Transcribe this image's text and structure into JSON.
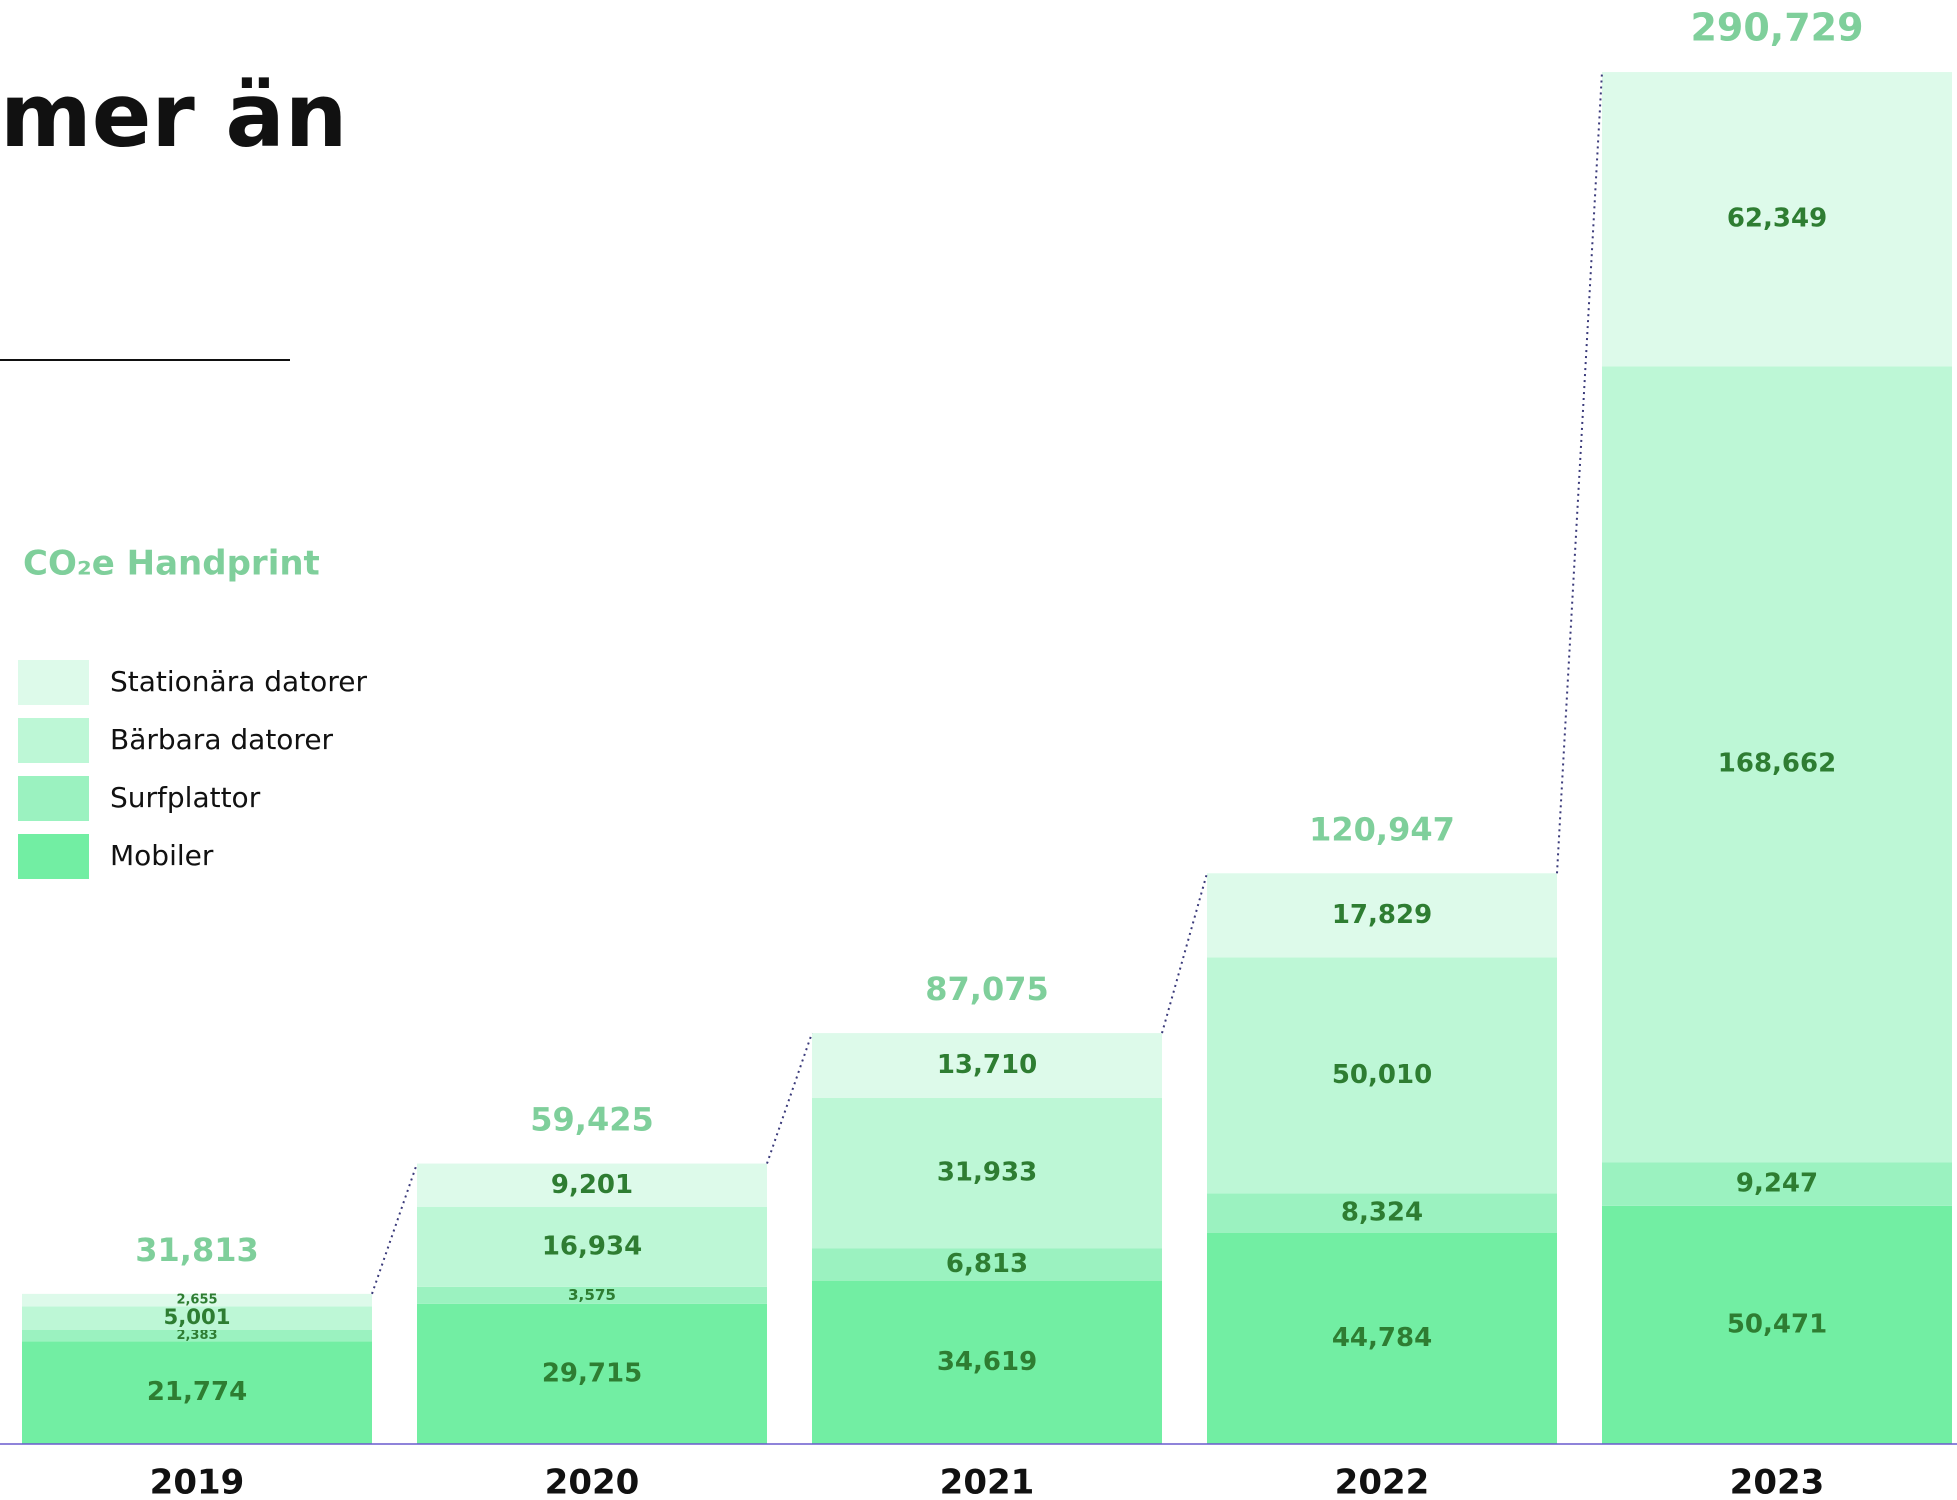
{
  "chart_data": {
    "type": "stacked_bar",
    "title": "mer än",
    "subtitle": "CO₂e Handprint",
    "categories": [
      "2019",
      "2020",
      "2021",
      "2022",
      "2023"
    ],
    "series": [
      {
        "name": "Mobiler",
        "color": "#72eea3",
        "values": [
          21774,
          29715,
          34619,
          44784,
          50471
        ],
        "value_labels": [
          "21,774",
          "29,715",
          "34,619",
          "44,784",
          "50,471"
        ]
      },
      {
        "name": "Surfplattor",
        "color": "#9bf2c0",
        "values": [
          2383,
          3575,
          6813,
          8324,
          9247
        ],
        "value_labels": [
          "2,383",
          "3,575",
          "6,813",
          "8,324",
          "9,247"
        ]
      },
      {
        "name": "Bärbara datorer",
        "color": "#bdf7d6",
        "values": [
          5001,
          16934,
          31933,
          50010,
          168662
        ],
        "value_labels": [
          "5,001",
          "16,934",
          "31,933",
          "50,010",
          "168,662"
        ]
      },
      {
        "name": "Stationära datorer",
        "color": "#ddfaea",
        "values": [
          2655,
          9201,
          13710,
          17829,
          62349
        ],
        "value_labels": [
          "2,655",
          "9,201",
          "13,710",
          "17,829",
          "62,349"
        ]
      }
    ],
    "totals": [
      31813,
      59425,
      87075,
      120947,
      290729
    ],
    "total_labels": [
      "31,813",
      "59,425",
      "87,075",
      "120,947",
      "290,729"
    ],
    "ylim": [
      0,
      306000
    ],
    "legend": "left"
  }
}
